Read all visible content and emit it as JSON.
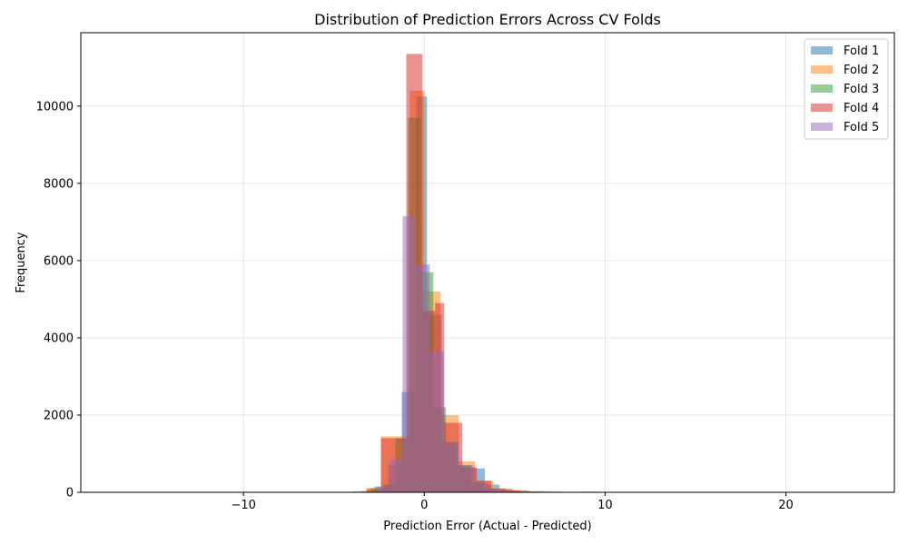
{
  "chart_data": {
    "type": "histogram",
    "title": "Distribution of Prediction Errors Across CV Folds",
    "xlabel": "Prediction Error (Actual - Predicted)",
    "ylabel": "Frequency",
    "xlim": [
      -19,
      26
    ],
    "ylim": [
      0,
      11900
    ],
    "xticks": [
      -10,
      0,
      10,
      20
    ],
    "xtick_labels": [
      "−10",
      "0",
      "10",
      "20"
    ],
    "yticks": [
      0,
      2000,
      4000,
      6000,
      8000,
      10000
    ],
    "grid": true,
    "legend_position": "top-right",
    "series": [
      {
        "name": "Fold 1",
        "color": "#1f77b4",
        "alpha": 0.5,
        "bins": [
          [
            -3.5,
            -2.75,
            30
          ],
          [
            -2.75,
            -2.0,
            150
          ],
          [
            -2.0,
            -1.25,
            700
          ],
          [
            -1.25,
            -0.45,
            2600
          ],
          [
            -0.45,
            0.15,
            10250
          ],
          [
            0.15,
            0.95,
            4600
          ],
          [
            0.95,
            1.75,
            1300
          ],
          [
            1.75,
            2.55,
            700
          ],
          [
            2.55,
            3.35,
            620
          ],
          [
            3.35,
            4.15,
            200
          ],
          [
            4.15,
            4.95,
            80
          ],
          [
            4.95,
            5.75,
            40
          ],
          [
            5.75,
            6.55,
            25
          ],
          [
            6.55,
            7.35,
            15
          ],
          [
            7.35,
            8.15,
            8
          ],
          [
            8.15,
            8.95,
            5
          ]
        ]
      },
      {
        "name": "Fold 2",
        "color": "#ff7f0e",
        "alpha": 0.5,
        "bins": [
          [
            -4.0,
            -3.2,
            30
          ],
          [
            -3.2,
            -2.4,
            120
          ],
          [
            -2.4,
            -1.6,
            1450
          ],
          [
            -1.6,
            -0.8,
            1450
          ],
          [
            -0.8,
            0.0,
            10400
          ],
          [
            0.0,
            0.9,
            5200
          ],
          [
            0.9,
            1.9,
            2000
          ],
          [
            1.9,
            2.8,
            800
          ],
          [
            2.8,
            3.8,
            300
          ],
          [
            3.8,
            4.8,
            100
          ],
          [
            4.8,
            5.7,
            60
          ],
          [
            5.7,
            6.7,
            30
          ],
          [
            6.7,
            7.7,
            20
          ],
          [
            7.7,
            8.7,
            10
          ],
          [
            8.7,
            9.7,
            20
          ]
        ]
      },
      {
        "name": "Fold 3",
        "color": "#2ca02c",
        "alpha": 0.5,
        "bins": [
          [
            -3.0,
            -2.3,
            100
          ],
          [
            -2.3,
            -1.6,
            200
          ],
          [
            -1.6,
            -0.9,
            1400
          ],
          [
            -0.9,
            -0.2,
            9700
          ],
          [
            -0.2,
            0.5,
            5700
          ],
          [
            0.5,
            1.2,
            2200
          ],
          [
            1.2,
            1.9,
            1300
          ],
          [
            1.9,
            2.6,
            700
          ],
          [
            2.6,
            3.3,
            250
          ],
          [
            3.3,
            4.0,
            90
          ],
          [
            4.0,
            4.7,
            40
          ],
          [
            4.7,
            5.4,
            20
          ],
          [
            5.4,
            6.1,
            10
          ]
        ]
      },
      {
        "name": "Fold 4",
        "color": "#d62728",
        "alpha": 0.5,
        "bins": [
          [
            -3.2,
            -2.4,
            80
          ],
          [
            -2.4,
            -1.7,
            1400
          ],
          [
            -1.7,
            -1.0,
            1400
          ],
          [
            -1.0,
            -0.1,
            11350
          ],
          [
            -0.1,
            0.6,
            4700
          ],
          [
            0.6,
            1.1,
            4900
          ],
          [
            1.1,
            2.1,
            1800
          ],
          [
            2.1,
            2.9,
            650
          ],
          [
            2.9,
            3.7,
            300
          ],
          [
            3.7,
            4.5,
            100
          ],
          [
            4.5,
            5.3,
            50
          ],
          [
            5.3,
            6.1,
            20
          ],
          [
            6.1,
            6.9,
            10
          ],
          [
            6.9,
            7.7,
            5
          ]
        ]
      },
      {
        "name": "Fold 5",
        "color": "#9467bd",
        "alpha": 0.5,
        "bins": [
          [
            -2.6,
            -1.9,
            150
          ],
          [
            -1.9,
            -1.2,
            850
          ],
          [
            -1.2,
            -0.5,
            7150
          ],
          [
            -0.5,
            0.3,
            5900
          ],
          [
            0.3,
            1.1,
            3650
          ],
          [
            1.1,
            1.9,
            1300
          ],
          [
            1.9,
            2.7,
            700
          ],
          [
            2.7,
            3.5,
            250
          ],
          [
            3.5,
            4.3,
            80
          ],
          [
            4.3,
            5.1,
            30
          ],
          [
            5.1,
            5.9,
            10
          ]
        ]
      }
    ]
  }
}
